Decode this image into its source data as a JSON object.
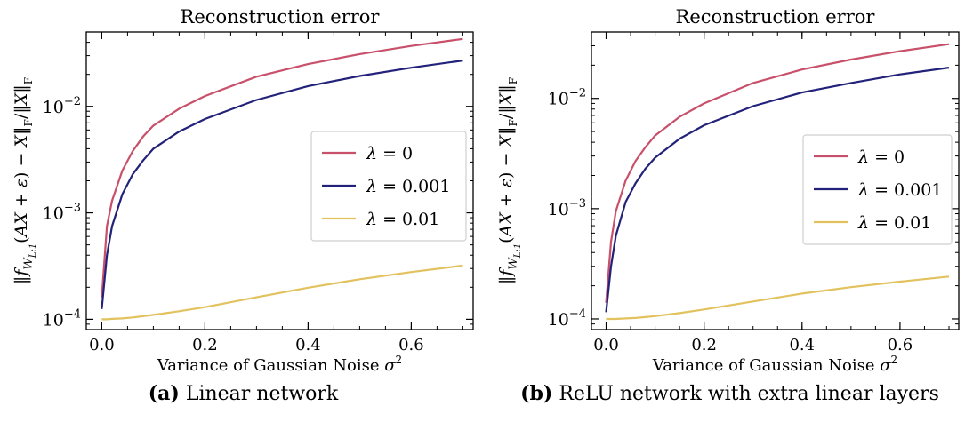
{
  "captions": [
    {
      "tag": "(a)",
      "text": "Linear network"
    },
    {
      "tag": "(b)",
      "text": "ReLU network with extra linear layers"
    }
  ],
  "colors": {
    "lambda_0": "#c8506a",
    "lambda_0001": "#23227a",
    "lambda_001": "#e2c25e"
  },
  "chart_data": [
    {
      "type": "line",
      "title": "Reconstruction error",
      "xlabel": "Variance of Gaussian Noise σ²",
      "ylabel": "‖f_{W_{L:1}}(AX+ε) − X‖_F / ‖X‖_F",
      "yscale": "log",
      "xlim": [
        -0.03,
        0.72
      ],
      "ylim": [
        8e-05,
        0.05
      ],
      "xticks": [
        "0.0",
        "0.2",
        "0.4",
        "0.6"
      ],
      "yticks": [
        "10⁻⁴",
        "10⁻³",
        "10⁻²"
      ],
      "legend_position": "right",
      "x": [
        0.0,
        0.01,
        0.02,
        0.04,
        0.06,
        0.08,
        0.1,
        0.15,
        0.2,
        0.3,
        0.4,
        0.5,
        0.6,
        0.7
      ],
      "series": [
        {
          "name": "λ = 0",
          "color": "#c8506a",
          "values": [
            0.00016,
            0.00075,
            0.0013,
            0.0025,
            0.0038,
            0.0052,
            0.0066,
            0.0095,
            0.0125,
            0.019,
            0.025,
            0.031,
            0.037,
            0.043
          ]
        },
        {
          "name": "λ = 0.001",
          "color": "#23227a",
          "values": [
            0.000125,
            0.0004,
            0.00075,
            0.0015,
            0.0023,
            0.0031,
            0.004,
            0.0058,
            0.0076,
            0.0115,
            0.0155,
            0.0193,
            0.0231,
            0.027
          ]
        },
        {
          "name": "λ = 0.01",
          "color": "#e2c25e",
          "values": [
            0.0001,
            0.0001,
            0.000101,
            0.000102,
            0.000104,
            0.000107,
            0.00011,
            0.000119,
            0.00013,
            0.000161,
            0.000198,
            0.000238,
            0.000278,
            0.00032
          ]
        }
      ]
    },
    {
      "type": "line",
      "title": "Reconstruction error",
      "xlabel": "Variance of Gaussian Noise σ²",
      "ylabel": "‖f_{W_{L:1}}(AX+ε) − X‖_F / ‖X‖_F",
      "yscale": "log",
      "xlim": [
        -0.03,
        0.72
      ],
      "ylim": [
        8e-05,
        0.04
      ],
      "xticks": [
        "0.0",
        "0.2",
        "0.4",
        "0.6"
      ],
      "yticks": [
        "10⁻⁴",
        "10⁻³",
        "10⁻²"
      ],
      "legend_position": "right",
      "x": [
        0.0,
        0.01,
        0.02,
        0.04,
        0.06,
        0.08,
        0.1,
        0.15,
        0.2,
        0.3,
        0.4,
        0.5,
        0.6,
        0.7
      ],
      "series": [
        {
          "name": "λ = 0",
          "color": "#c8506a",
          "values": [
            0.00014,
            0.0005,
            0.00095,
            0.0018,
            0.0027,
            0.0036,
            0.0046,
            0.0068,
            0.009,
            0.0138,
            0.0183,
            0.0225,
            0.0268,
            0.031
          ]
        },
        {
          "name": "λ = 0.001",
          "color": "#23227a",
          "values": [
            0.000115,
            0.0003,
            0.00057,
            0.00115,
            0.0017,
            0.0023,
            0.0029,
            0.0043,
            0.0057,
            0.0085,
            0.0113,
            0.0138,
            0.0165,
            0.019
          ]
        },
        {
          "name": "λ = 0.01",
          "color": "#e2c25e",
          "values": [
            0.0001,
            0.0001,
            0.0001,
            0.000101,
            0.000102,
            0.000104,
            0.000106,
            0.000113,
            0.000122,
            0.000144,
            0.00017,
            0.000194,
            0.000218,
            0.000242
          ]
        }
      ]
    }
  ]
}
